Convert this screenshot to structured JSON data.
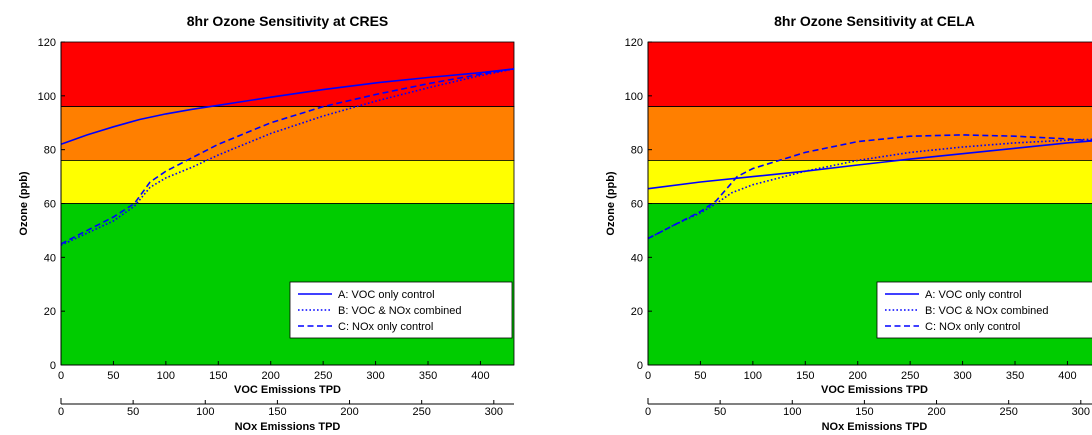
{
  "colors": {
    "red_band": "#ff0000",
    "orange_band": "#ff7f00",
    "yellow_band": "#ffff00",
    "green_band": "#00cc00",
    "series_line": "#0000ff",
    "axis": "#000000"
  },
  "chart_data": [
    {
      "type": "line",
      "title": "8hr Ozone Sensitivity at CRES",
      "ylabel": "Ozone (ppb)",
      "xlabel": "VOC Emissions TPD",
      "x2label": "NOx Emissions TPD",
      "xlim": [
        0,
        432
      ],
      "x2lim": [
        0,
        314
      ],
      "ylim": [
        0,
        120
      ],
      "xticks": [
        0,
        50,
        100,
        150,
        200,
        250,
        300,
        350,
        400
      ],
      "x2ticks": [
        0,
        50,
        100,
        150,
        200,
        250,
        300
      ],
      "yticks": [
        0,
        20,
        40,
        60,
        80,
        100,
        120
      ],
      "grid": false,
      "legend_position": "bottom-right",
      "bands": [
        {
          "from": 96,
          "to": 120,
          "color": "#ff0000"
        },
        {
          "from": 76,
          "to": 96,
          "color": "#ff7f00"
        },
        {
          "from": 60,
          "to": 76,
          "color": "#ffff00"
        },
        {
          "from": 0,
          "to": 60,
          "color": "#00cc00"
        }
      ],
      "series": [
        {
          "name": "A: VOC only control",
          "style": "solid",
          "x": [
            0,
            25,
            50,
            75,
            100,
            125,
            150,
            200,
            250,
            300,
            350,
            400,
            432
          ],
          "y": [
            82,
            85.5,
            88.5,
            91.2,
            93.3,
            95,
            96.5,
            99.5,
            102.3,
            104.8,
            106.8,
            108.6,
            110
          ]
        },
        {
          "name": "B: VOC & NOx combined",
          "style": "dotted",
          "x": [
            0,
            25,
            50,
            70,
            85,
            100,
            125,
            150,
            200,
            250,
            300,
            350,
            400,
            432
          ],
          "y": [
            44.5,
            49,
            53.5,
            59,
            66,
            69.5,
            73.5,
            78,
            86,
            92.5,
            98,
            103,
            107.5,
            110
          ]
        },
        {
          "name": "C: NOx only control",
          "style": "dashed",
          "x": [
            0,
            25,
            50,
            70,
            85,
            100,
            125,
            150,
            200,
            250,
            300,
            350,
            400,
            432
          ],
          "y": [
            45,
            50,
            55,
            60,
            68,
            72,
            77,
            82,
            90,
            96,
            100.5,
            104.5,
            108,
            110
          ]
        }
      ]
    },
    {
      "type": "line",
      "title": "8hr Ozone Sensitivity at CELA",
      "ylabel": "Ozone (ppb)",
      "xlabel": "VOC Emissions TPD",
      "x2label": "NOx Emissions TPD",
      "xlim": [
        0,
        432
      ],
      "x2lim": [
        0,
        314
      ],
      "ylim": [
        0,
        120
      ],
      "xticks": [
        0,
        50,
        100,
        150,
        200,
        250,
        300,
        350,
        400
      ],
      "x2ticks": [
        0,
        50,
        100,
        150,
        200,
        250,
        300
      ],
      "yticks": [
        0,
        20,
        40,
        60,
        80,
        100,
        120
      ],
      "grid": false,
      "legend_position": "bottom-right",
      "bands": [
        {
          "from": 96,
          "to": 120,
          "color": "#ff0000"
        },
        {
          "from": 76,
          "to": 96,
          "color": "#ff7f00"
        },
        {
          "from": 60,
          "to": 76,
          "color": "#ffff00"
        },
        {
          "from": 0,
          "to": 60,
          "color": "#00cc00"
        }
      ],
      "series": [
        {
          "name": "A: VOC only control",
          "style": "solid",
          "x": [
            0,
            50,
            100,
            150,
            200,
            250,
            300,
            350,
            400,
            432
          ],
          "y": [
            65.5,
            68,
            70,
            72,
            74.3,
            76.5,
            78.5,
            80.5,
            82.5,
            83.5
          ]
        },
        {
          "name": "B: VOC & NOx combined",
          "style": "dotted",
          "x": [
            0,
            25,
            50,
            65,
            80,
            100,
            150,
            200,
            250,
            300,
            350,
            400,
            432
          ],
          "y": [
            47,
            52,
            56.5,
            60,
            64,
            67,
            72,
            76,
            79,
            81,
            82.5,
            83.5,
            84
          ]
        },
        {
          "name": "C: NOx only control",
          "style": "dashed",
          "x": [
            0,
            25,
            50,
            65,
            85,
            100,
            150,
            200,
            250,
            300,
            350,
            400,
            432
          ],
          "y": [
            47,
            52,
            57,
            61,
            70,
            73,
            79,
            83,
            85,
            85.5,
            85,
            84,
            83
          ]
        }
      ]
    }
  ]
}
